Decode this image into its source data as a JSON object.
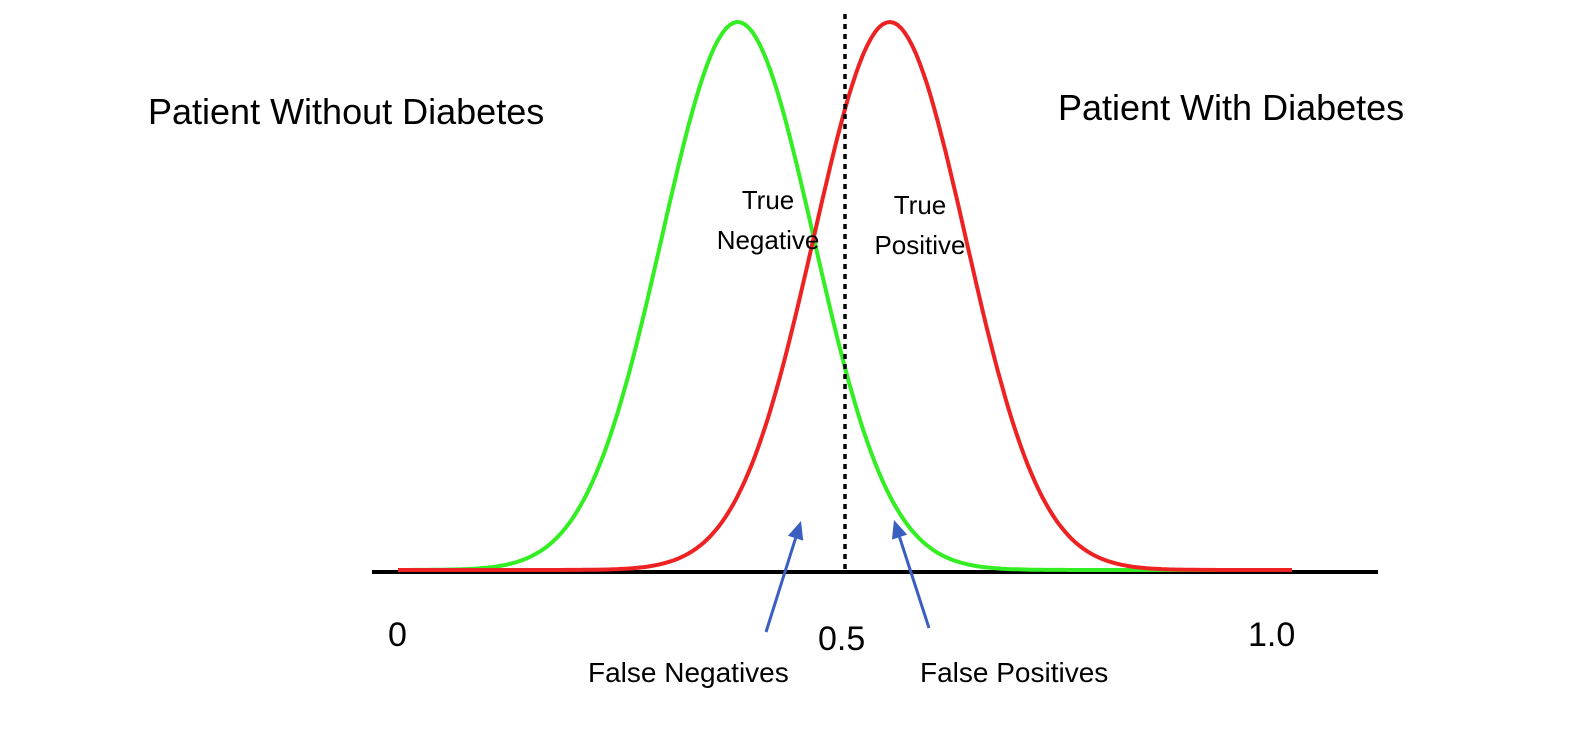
{
  "labels": {
    "without": "Patient Without Diabetes",
    "with": "Patient With Diabetes",
    "true_negative_line1": "True",
    "true_negative_line2": "Negative",
    "true_positive_line1": "True",
    "true_positive_line2": "Positive",
    "false_negatives": "False Negatives",
    "false_positives": "False Positives"
  },
  "axis": {
    "ticks": [
      "0",
      "0.5",
      "1.0"
    ],
    "threshold": 0.5
  },
  "curves": {
    "without": {
      "mean": 0.38,
      "sd": 0.085,
      "color": "#33ee22"
    },
    "with": {
      "mean": 0.55,
      "sd": 0.085,
      "color": "#ee2222"
    }
  },
  "arrow_color": "#3a5fc0"
}
